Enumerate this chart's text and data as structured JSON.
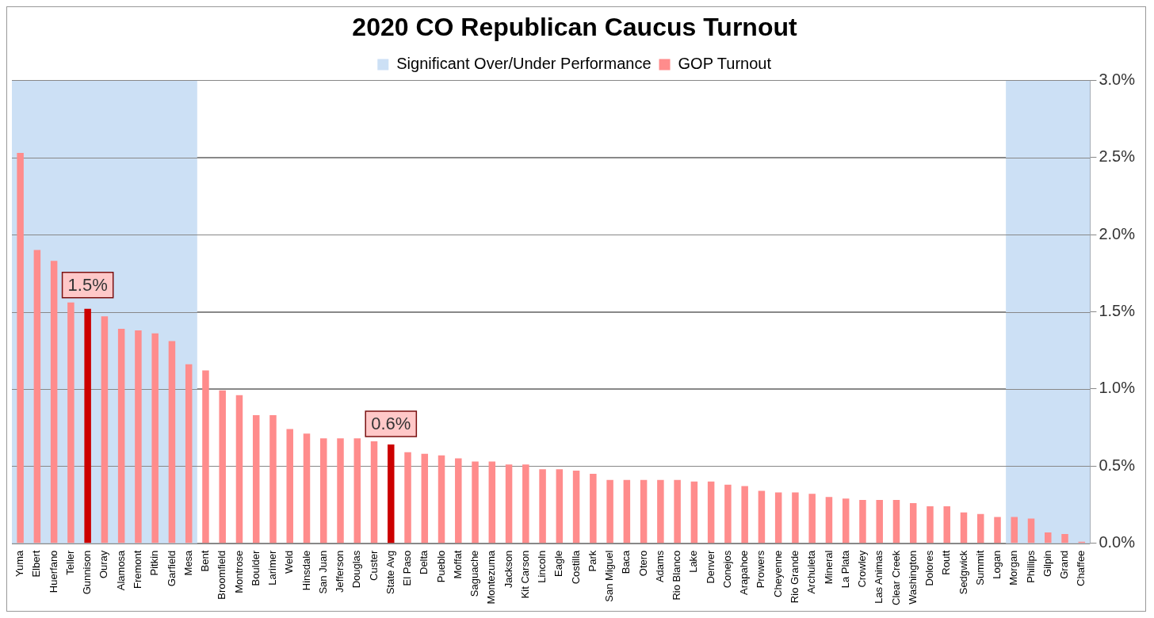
{
  "chart_data": {
    "type": "bar",
    "title": "2020 CO Republican Caucus Turnout",
    "categories": [
      "Yuma",
      "Elbert",
      "Huerfano",
      "Teller",
      "Gunnison",
      "Ouray",
      "Alamosa",
      "Fremont",
      "Pitkin",
      "Garfield",
      "Mesa",
      "Bent",
      "Broomfield",
      "Montrose",
      "Boulder",
      "Larimer",
      "Weld",
      "Hinsdale",
      "San Juan",
      "Jefferson",
      "Douglas",
      "Custer",
      "State Avg",
      "El Paso",
      "Delta",
      "Pueblo",
      "Moffat",
      "Saguache",
      "Montezuma",
      "Jackson",
      "Kit Carson",
      "Lincoln",
      "Eagle",
      "Costilla",
      "Park",
      "San Miguel",
      "Baca",
      "Otero",
      "Adams",
      "Rio Blanco",
      "Lake",
      "Denver",
      "Conejos",
      "Arapahoe",
      "Prowers",
      "Cheyenne",
      "Rio Grande",
      "Archuleta",
      "Mineral",
      "La Plata",
      "Crowley",
      "Las Animas",
      "Clear Creek",
      "Washington",
      "Dolores",
      "Routt",
      "Sedgwick",
      "Summit",
      "Logan",
      "Morgan",
      "Phillips",
      "Gilpin",
      "Grand",
      "Chaffee"
    ],
    "series": [
      {
        "name": "GOP Turnout",
        "color": "#ff8c8c",
        "colors": [
          "#ff8c8c",
          "#ff8c8c",
          "#ff8c8c",
          "#ff8c8c",
          "#cc0000",
          "#ff8c8c",
          "#ff8c8c",
          "#ff8c8c",
          "#ff8c8c",
          "#ff8c8c",
          "#ff8c8c",
          "#ff8c8c",
          "#ff8c8c",
          "#ff8c8c",
          "#ff8c8c",
          "#ff8c8c",
          "#ff8c8c",
          "#ff8c8c",
          "#ff8c8c",
          "#ff8c8c",
          "#ff8c8c",
          "#ff8c8c",
          "#cc0000",
          "#ff8c8c",
          "#ff8c8c",
          "#ff8c8c",
          "#ff8c8c",
          "#ff8c8c",
          "#ff8c8c",
          "#ff8c8c",
          "#ff8c8c",
          "#ff8c8c",
          "#ff8c8c",
          "#ff8c8c",
          "#ff8c8c",
          "#ff8c8c",
          "#ff8c8c",
          "#ff8c8c",
          "#ff8c8c",
          "#ff8c8c",
          "#ff8c8c",
          "#ff8c8c",
          "#ff8c8c",
          "#ff8c8c",
          "#ff8c8c",
          "#ff8c8c",
          "#ff8c8c",
          "#ff8c8c",
          "#ff8c8c",
          "#ff8c8c",
          "#ff8c8c",
          "#ff8c8c",
          "#ff8c8c",
          "#ff8c8c",
          "#ff8c8c",
          "#ff8c8c",
          "#ff8c8c",
          "#ff8c8c",
          "#ff8c8c",
          "#ff8c8c",
          "#ff8c8c",
          "#ff8c8c",
          "#ff8c8c",
          "#ff8c8c"
        ],
        "values": [
          2.53,
          1.9,
          1.83,
          1.56,
          1.52,
          1.47,
          1.39,
          1.38,
          1.36,
          1.31,
          1.16,
          1.12,
          0.99,
          0.96,
          0.83,
          0.83,
          0.74,
          0.71,
          0.68,
          0.68,
          0.68,
          0.66,
          0.64,
          0.59,
          0.58,
          0.57,
          0.55,
          0.53,
          0.53,
          0.51,
          0.51,
          0.48,
          0.48,
          0.47,
          0.45,
          0.41,
          0.41,
          0.41,
          0.41,
          0.41,
          0.4,
          0.4,
          0.38,
          0.37,
          0.34,
          0.33,
          0.33,
          0.32,
          0.3,
          0.29,
          0.28,
          0.28,
          0.28,
          0.26,
          0.24,
          0.24,
          0.2,
          0.19,
          0.17,
          0.17,
          0.16,
          0.07,
          0.06,
          0.01
        ],
        "value_labels": [
          null,
          null,
          null,
          null,
          "1.5%",
          null,
          null,
          null,
          null,
          null,
          null,
          null,
          null,
          null,
          null,
          null,
          null,
          null,
          null,
          null,
          null,
          null,
          "0.6%",
          null,
          null,
          null,
          null,
          null,
          null,
          null,
          null,
          null,
          null,
          null,
          null,
          null,
          null,
          null,
          null,
          null,
          null,
          null,
          null,
          null,
          null,
          null,
          null,
          null,
          null,
          null,
          null,
          null,
          null,
          null,
          null,
          null,
          null,
          null,
          null,
          null,
          null,
          null,
          null,
          null
        ]
      }
    ],
    "bands": [
      {
        "axis": "x",
        "from": "Yuma",
        "to": "Mesa",
        "label": "Significant Over/Under Performance",
        "color": "#cce0f5"
      },
      {
        "axis": "x",
        "from": "Morgan",
        "to": "Chaffee",
        "color": "#cce0f5"
      }
    ],
    "ylim": [
      0,
      3
    ],
    "yticks": [
      {
        "value": 0,
        "label": "0.0%"
      },
      {
        "value": 0.5,
        "label": "0.5%"
      },
      {
        "value": 1,
        "label": "1.0%"
      },
      {
        "value": 1.5,
        "label": "1.5%"
      },
      {
        "value": 2,
        "label": "2.0%"
      },
      {
        "value": 2.5,
        "label": "2.5%"
      },
      {
        "value": 3,
        "label": "3.0%"
      }
    ],
    "grid": "y",
    "legend": "top"
  }
}
